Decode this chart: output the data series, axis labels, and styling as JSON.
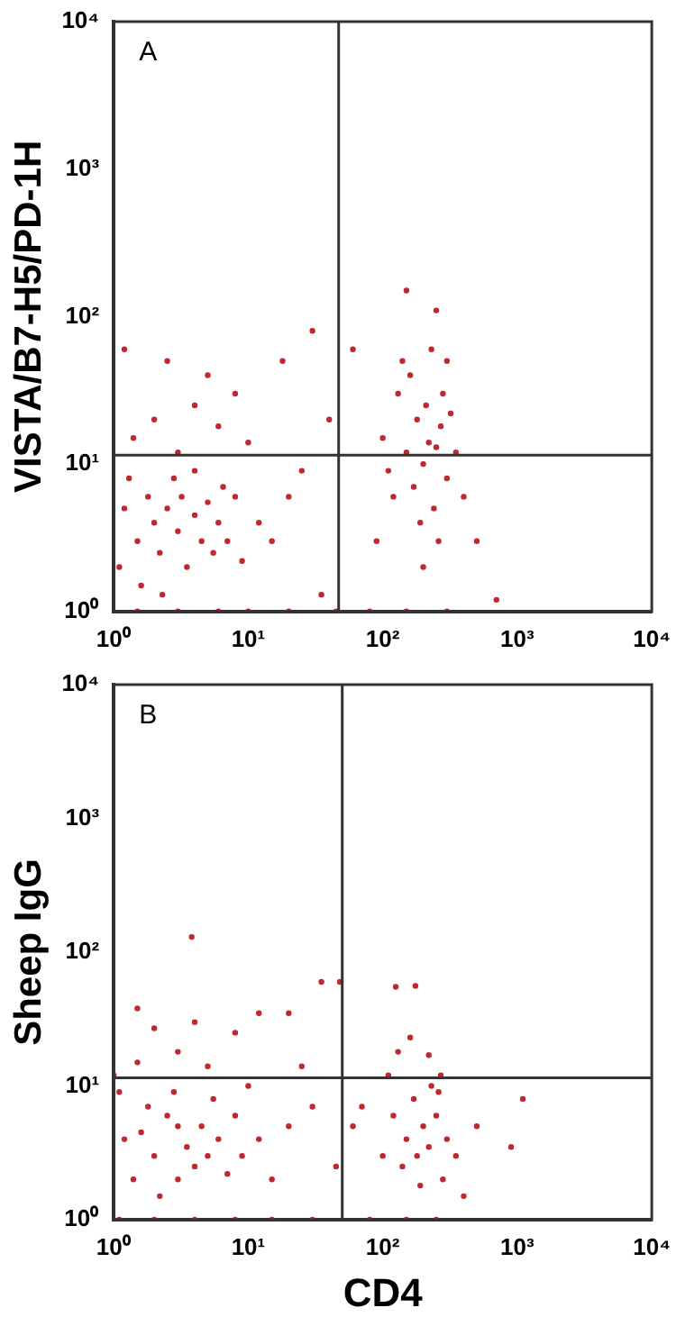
{
  "chart_data": [
    {
      "type": "scatter",
      "ylabel": "VISTA/B7-H5/PD-1H",
      "annotations": [
        "A"
      ],
      "log": "xy",
      "grid": false,
      "legend": false,
      "marker": "circle",
      "xlim": [
        1,
        10000
      ],
      "ylim": [
        1,
        10000
      ],
      "xticks": [
        {
          "value": 1,
          "label": "10⁰"
        },
        {
          "value": 10,
          "label": "10¹"
        },
        {
          "value": 100,
          "label": "10²"
        },
        {
          "value": 1000,
          "label": "10³"
        },
        {
          "value": 10000,
          "label": "10⁴"
        }
      ],
      "yticks": [
        {
          "value": 1,
          "label": "10⁰"
        },
        {
          "value": 10,
          "label": "10¹"
        },
        {
          "value": 100,
          "label": "10²"
        },
        {
          "value": 1000,
          "label": "10³"
        },
        {
          "value": 10000,
          "label": "10⁴"
        }
      ],
      "ref_lines": [
        {
          "axis": "x",
          "value": 47,
          "label": null,
          "color": "#333333"
        },
        {
          "axis": "y",
          "value": 11.5,
          "label": null,
          "color": "#333333"
        }
      ],
      "series": [
        {
          "color": "#c0282d",
          "x": [
            1.2,
            1.5,
            1.8,
            2,
            2.2,
            2.5,
            3,
            3.2,
            3.5,
            4,
            4.5,
            5,
            5.5,
            6,
            7,
            8,
            1.3,
            1.6,
            2.8,
            4,
            1.1,
            2.3,
            6.5,
            9,
            12,
            15,
            20,
            1.4,
            2,
            3,
            4,
            6,
            8,
            2.5,
            1.2,
            5,
            10,
            18,
            30,
            40,
            25,
            35,
            1.5,
            3,
            6,
            10,
            20,
            45,
            150,
            200,
            220,
            250,
            180,
            130,
            160,
            210,
            270,
            300,
            240,
            190,
            120,
            170,
            280,
            140,
            230,
            300,
            100,
            90,
            350,
            400,
            200,
            260,
            150,
            250,
            60,
            500,
            700,
            80,
            150,
            300,
            110,
            320
          ],
          "values": [
            5,
            3,
            6,
            4,
            2.5,
            5,
            3.5,
            6,
            2,
            4.5,
            3,
            5.5,
            2.5,
            4,
            3,
            6,
            8,
            1.5,
            8,
            9,
            2,
            1.3,
            7,
            2.2,
            4,
            3,
            6,
            15,
            20,
            12,
            25,
            18,
            30,
            50,
            60,
            40,
            14,
            50,
            80,
            20,
            9,
            1.3,
            1,
            1,
            1,
            1,
            1,
            1,
            12,
            10,
            14,
            13,
            20,
            30,
            40,
            25,
            18,
            8,
            5,
            4,
            6,
            7,
            30,
            50,
            60,
            50,
            15,
            3,
            12,
            6,
            2,
            3,
            150,
            110,
            60,
            3,
            1.2,
            1,
            1,
            1,
            9,
            22
          ]
        }
      ]
    },
    {
      "type": "scatter",
      "xlabel": "CD4",
      "ylabel": "Sheep IgG",
      "annotations": [
        "B"
      ],
      "log": "xy",
      "grid": false,
      "legend": false,
      "marker": "circle",
      "xlim": [
        1,
        10000
      ],
      "ylim": [
        1,
        10000
      ],
      "xticks": [
        {
          "value": 1,
          "label": "10⁰"
        },
        {
          "value": 10,
          "label": "10¹"
        },
        {
          "value": 100,
          "label": "10²"
        },
        {
          "value": 1000,
          "label": "10³"
        },
        {
          "value": 10000,
          "label": "10⁴"
        }
      ],
      "yticks": [
        {
          "value": 1,
          "label": "10⁰"
        },
        {
          "value": 10,
          "label": "10¹"
        },
        {
          "value": 100,
          "label": "10²"
        },
        {
          "value": 1000,
          "label": "10³"
        },
        {
          "value": 10000,
          "label": "10⁴"
        }
      ],
      "ref_lines": [
        {
          "axis": "x",
          "value": 50,
          "label": null,
          "color": "#333333"
        },
        {
          "axis": "y",
          "value": 11.5,
          "label": null,
          "color": "#333333"
        }
      ],
      "series": [
        {
          "color": "#c0282d",
          "x": [
            1.2,
            1.6,
            2,
            2.5,
            3,
            3.5,
            4,
            1.4,
            1.8,
            2.2,
            3,
            4.5,
            5,
            6,
            7,
            8,
            1.1,
            2.8,
            5.5,
            9,
            12,
            15,
            20,
            30,
            45,
            1.5,
            3,
            4,
            5,
            8,
            12,
            20,
            35,
            48,
            3.8,
            1.5,
            2,
            1.1,
            2,
            4,
            8,
            15,
            30,
            1,
            10,
            25,
            150,
            180,
            200,
            220,
            250,
            170,
            280,
            140,
            190,
            300,
            260,
            230,
            120,
            350,
            100,
            70,
            60,
            500,
            900,
            1100,
            130,
            160,
            125,
            175,
            220,
            150,
            250,
            80,
            400,
            110,
            270
          ],
          "values": [
            4,
            4.5,
            3,
            6,
            5,
            3.5,
            2.5,
            2,
            7,
            1.5,
            2,
            5,
            3,
            4,
            2.2,
            6,
            9,
            9,
            8,
            3,
            4,
            2,
            5,
            7,
            2.5,
            15,
            18,
            30,
            14,
            25,
            35,
            35,
            60,
            60,
            130,
            38,
            27,
            1,
            1,
            1,
            1,
            1,
            1,
            12,
            10,
            14,
            4,
            3,
            5,
            3.5,
            6,
            8,
            2,
            2.5,
            1.8,
            4,
            9,
            10,
            6,
            3,
            3,
            7,
            5,
            5,
            3.5,
            8,
            18,
            23,
            55,
            56,
            17,
            1,
            1,
            1,
            1.5,
            12,
            12
          ]
        }
      ]
    }
  ]
}
